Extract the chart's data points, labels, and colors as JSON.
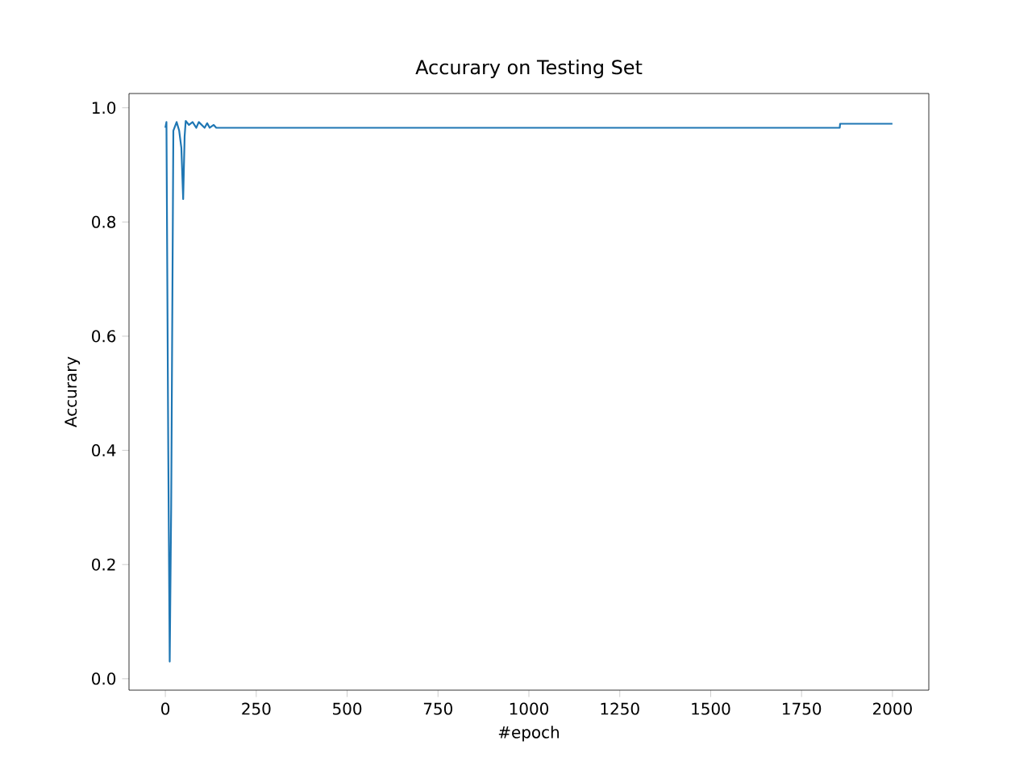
{
  "chart_data": {
    "type": "line",
    "title": "Accurary on Testing Set",
    "xlabel": "#epoch",
    "ylabel": "Accurary",
    "x": [
      0,
      3,
      8,
      12,
      16,
      22,
      31,
      38,
      44,
      49,
      53,
      56,
      65,
      75,
      85,
      92,
      100,
      108,
      115,
      122,
      133,
      140,
      1855,
      1856,
      2000
    ],
    "series": [
      {
        "color": "#1f77b4",
        "values": [
          0.965,
          0.975,
          0.4,
          0.03,
          0.3,
          0.96,
          0.975,
          0.96,
          0.93,
          0.84,
          0.95,
          0.977,
          0.97,
          0.975,
          0.965,
          0.975,
          0.97,
          0.965,
          0.973,
          0.965,
          0.97,
          0.965,
          0.965,
          0.972,
          0.972
        ]
      }
    ],
    "xlim": [
      -100,
      2100
    ],
    "ylim": [
      -0.02,
      1.025
    ],
    "xticks": [
      0,
      250,
      500,
      750,
      1000,
      1250,
      1500,
      1750,
      2000
    ],
    "yticks": [
      {
        "value": 0,
        "label": "0.0"
      },
      {
        "value": 0.2,
        "label": "0.2"
      },
      {
        "value": 0.4,
        "label": "0.4"
      },
      {
        "value": 0.6,
        "label": "0.6"
      },
      {
        "value": 0.8,
        "label": "0.8"
      },
      {
        "value": 1,
        "label": "1.0"
      }
    ]
  }
}
